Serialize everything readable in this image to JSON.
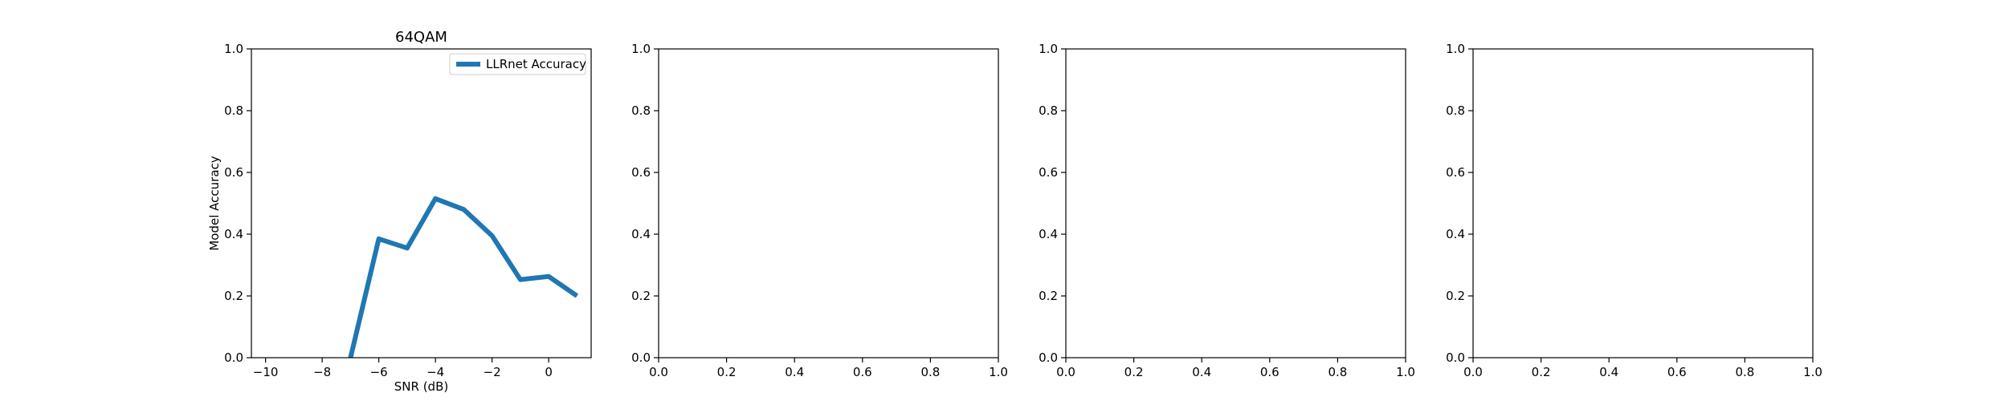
{
  "chart_data": [
    {
      "type": "line",
      "title": "64QAM",
      "xlabel": "SNR (dB)",
      "ylabel": "Model Accuracy",
      "xlim": [
        -10.5,
        1.5
      ],
      "ylim": [
        0.0,
        1.0
      ],
      "xticks": [
        -10,
        -8,
        -6,
        -4,
        -2,
        0
      ],
      "yticks": [
        0.0,
        0.2,
        0.4,
        0.6,
        0.8,
        1.0
      ],
      "xtick_labels": [
        "−10",
        "−8",
        "−6",
        "−4",
        "−2",
        "0"
      ],
      "ytick_labels": [
        "0.0",
        "0.2",
        "0.4",
        "0.6",
        "0.8",
        "1.0"
      ],
      "grid": false,
      "legend_position": "top-right",
      "series": [
        {
          "name": "LLRnet Accuracy",
          "color": "#1f77b4",
          "x": [
            -7,
            -6,
            -5,
            -4,
            -3,
            -2,
            -1,
            0,
            1
          ],
          "y": [
            0.0,
            0.385,
            0.355,
            0.515,
            0.48,
            0.395,
            0.253,
            0.263,
            0.2
          ]
        }
      ]
    },
    {
      "type": "line",
      "title": "",
      "xlabel": "",
      "ylabel": "",
      "xlim": [
        0.0,
        1.0
      ],
      "ylim": [
        0.0,
        1.0
      ],
      "xticks": [
        0.0,
        0.2,
        0.4,
        0.6,
        0.8,
        1.0
      ],
      "yticks": [
        0.0,
        0.2,
        0.4,
        0.6,
        0.8,
        1.0
      ],
      "xtick_labels": [
        "0.0",
        "0.2",
        "0.4",
        "0.6",
        "0.8",
        "1.0"
      ],
      "ytick_labels": [
        "0.0",
        "0.2",
        "0.4",
        "0.6",
        "0.8",
        "1.0"
      ],
      "grid": false,
      "series": []
    },
    {
      "type": "line",
      "title": "",
      "xlabel": "",
      "ylabel": "",
      "xlim": [
        0.0,
        1.0
      ],
      "ylim": [
        0.0,
        1.0
      ],
      "xticks": [
        0.0,
        0.2,
        0.4,
        0.6,
        0.8,
        1.0
      ],
      "yticks": [
        0.0,
        0.2,
        0.4,
        0.6,
        0.8,
        1.0
      ],
      "xtick_labels": [
        "0.0",
        "0.2",
        "0.4",
        "0.6",
        "0.8",
        "1.0"
      ],
      "ytick_labels": [
        "0.0",
        "0.2",
        "0.4",
        "0.6",
        "0.8",
        "1.0"
      ],
      "grid": false,
      "series": []
    },
    {
      "type": "line",
      "title": "",
      "xlabel": "",
      "ylabel": "",
      "xlim": [
        0.0,
        1.0
      ],
      "ylim": [
        0.0,
        1.0
      ],
      "xticks": [
        0.0,
        0.2,
        0.4,
        0.6,
        0.8,
        1.0
      ],
      "yticks": [
        0.0,
        0.2,
        0.4,
        0.6,
        0.8,
        1.0
      ],
      "xtick_labels": [
        "0.0",
        "0.2",
        "0.4",
        "0.6",
        "0.8",
        "1.0"
      ],
      "ytick_labels": [
        "0.0",
        "0.2",
        "0.4",
        "0.6",
        "0.8",
        "1.0"
      ],
      "grid": false,
      "series": []
    }
  ]
}
